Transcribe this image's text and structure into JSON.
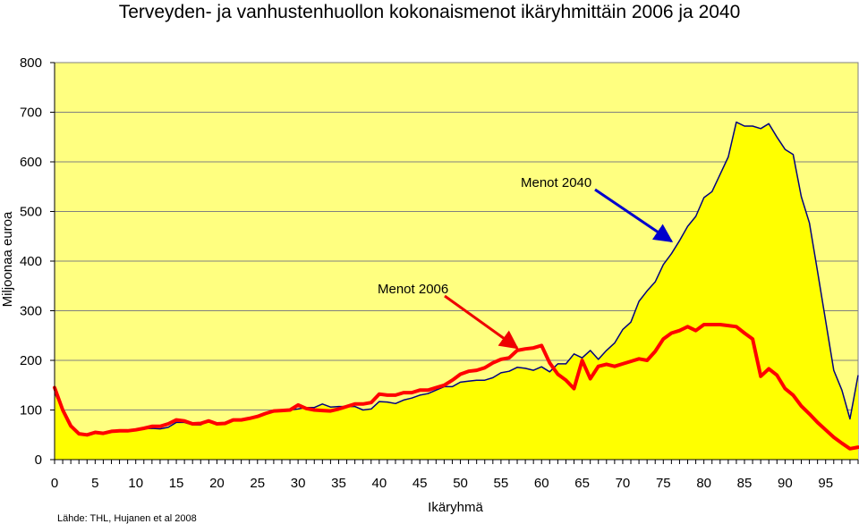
{
  "chart_data": {
    "type": "line",
    "title": "Terveyden- ja vanhustenhuollon kokonaismenot ikäryhmittäin 2006 ja 2040",
    "xlabel": "Ikäryhmä",
    "ylabel": "Miljoonaa euroa",
    "source": "Lähde: THL, Hujanen et al 2008",
    "xlim": [
      0,
      99
    ],
    "ylim": [
      0,
      800
    ],
    "x_ticks": [
      0,
      5,
      10,
      15,
      20,
      25,
      30,
      35,
      40,
      45,
      50,
      55,
      60,
      65,
      70,
      75,
      80,
      85,
      90,
      95
    ],
    "y_ticks": [
      0,
      100,
      200,
      300,
      400,
      500,
      600,
      700,
      800
    ],
    "grid": true,
    "background_color": "#FFFF80",
    "series": [
      {
        "name": "Menot 2040",
        "color": "#000080",
        "fill": "#FFFF00",
        "x": [
          0,
          1,
          2,
          3,
          4,
          5,
          6,
          7,
          8,
          9,
          10,
          11,
          12,
          13,
          14,
          15,
          16,
          17,
          18,
          19,
          20,
          21,
          22,
          23,
          24,
          25,
          26,
          27,
          28,
          29,
          30,
          31,
          32,
          33,
          34,
          35,
          36,
          37,
          38,
          39,
          40,
          41,
          42,
          43,
          44,
          45,
          46,
          47,
          48,
          49,
          50,
          51,
          52,
          53,
          54,
          55,
          56,
          57,
          58,
          59,
          60,
          61,
          62,
          63,
          64,
          65,
          66,
          67,
          68,
          69,
          70,
          71,
          72,
          73,
          74,
          75,
          76,
          77,
          78,
          79,
          80,
          81,
          82,
          83,
          84,
          85,
          86,
          87,
          88,
          89,
          90,
          91,
          92,
          93,
          94,
          95,
          96,
          97,
          98,
          99
        ],
        "values": [
          135,
          100,
          68,
          52,
          48,
          53,
          52,
          57,
          57,
          58,
          60,
          62,
          63,
          62,
          65,
          75,
          75,
          70,
          70,
          78,
          73,
          73,
          78,
          78,
          82,
          87,
          92,
          96,
          98,
          100,
          102,
          105,
          105,
          112,
          106,
          107,
          107,
          107,
          100,
          102,
          117,
          116,
          113,
          120,
          124,
          130,
          133,
          140,
          147,
          147,
          156,
          158,
          160,
          160,
          165,
          175,
          178,
          186,
          184,
          180,
          187,
          177,
          193,
          193,
          213,
          205,
          220,
          202,
          220,
          235,
          262,
          277,
          319,
          340,
          358,
          393,
          415,
          441,
          470,
          490,
          528,
          540,
          575,
          610,
          680,
          672,
          672,
          667,
          677,
          650,
          625,
          615,
          530,
          477,
          380,
          280,
          180,
          140,
          82,
          170
        ]
      },
      {
        "name": "Menot 2006",
        "color": "#FF0000",
        "x": [
          0,
          1,
          2,
          3,
          4,
          5,
          6,
          7,
          8,
          9,
          10,
          11,
          12,
          13,
          14,
          15,
          16,
          17,
          18,
          19,
          20,
          21,
          22,
          23,
          24,
          25,
          26,
          27,
          28,
          29,
          30,
          31,
          32,
          33,
          34,
          35,
          36,
          37,
          38,
          39,
          40,
          41,
          42,
          43,
          44,
          45,
          46,
          47,
          48,
          49,
          50,
          51,
          52,
          53,
          54,
          55,
          56,
          57,
          58,
          59,
          60,
          61,
          62,
          63,
          64,
          65,
          66,
          67,
          68,
          69,
          70,
          71,
          72,
          73,
          74,
          75,
          76,
          77,
          78,
          79,
          80,
          81,
          82,
          83,
          84,
          85,
          86,
          87,
          88,
          89,
          90,
          91,
          92,
          93,
          94,
          95,
          96,
          97,
          98,
          99
        ],
        "values": [
          145,
          100,
          68,
          52,
          50,
          55,
          53,
          57,
          58,
          58,
          60,
          63,
          67,
          67,
          72,
          80,
          78,
          72,
          73,
          78,
          72,
          73,
          80,
          80,
          83,
          87,
          93,
          98,
          99,
          100,
          110,
          103,
          100,
          99,
          98,
          102,
          107,
          112,
          112,
          115,
          132,
          130,
          130,
          135,
          135,
          140,
          140,
          145,
          150,
          160,
          172,
          178,
          180,
          185,
          195,
          202,
          205,
          220,
          223,
          225,
          230,
          195,
          172,
          160,
          143,
          200,
          163,
          188,
          192,
          188,
          193,
          198,
          203,
          200,
          218,
          243,
          255,
          260,
          268,
          260,
          272,
          272,
          272,
          270,
          268,
          255,
          243,
          168,
          183,
          170,
          143,
          130,
          108,
          92,
          75,
          60,
          45,
          33,
          22,
          25
        ]
      }
    ],
    "annotations": [
      {
        "text": "Menot 2040",
        "points_to": [
          76,
          440
        ]
      },
      {
        "text": "Menot 2006",
        "points_to": [
          57,
          225
        ]
      }
    ]
  }
}
